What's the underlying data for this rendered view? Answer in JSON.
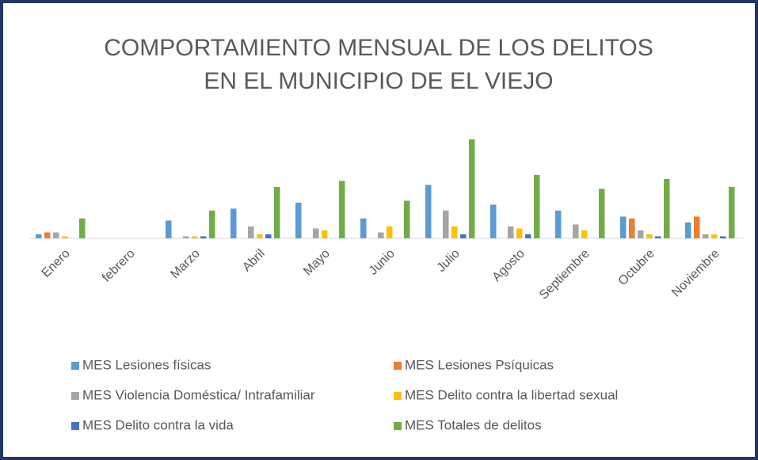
{
  "chart_data": {
    "type": "bar",
    "title": [
      "COMPORTAMIENTO MENSUAL DE LOS DELITOS",
      "EN EL MUNICIPIO DE EL VIEJO"
    ],
    "categories": [
      "Enero",
      "febrero",
      "Marzo",
      "Abril",
      "Mayo",
      "Junio",
      "Julio",
      "Agosto",
      "Septiembre",
      "Octubre",
      "Noviembre"
    ],
    "series": [
      {
        "name": "MES Lesiones físicas",
        "color": "#5b9bd5",
        "values": [
          2,
          0,
          9,
          15,
          18,
          10,
          27,
          17,
          14,
          11,
          8
        ]
      },
      {
        "name": "MES Lesiones Psíquicas",
        "color": "#ed7d31",
        "values": [
          3,
          0,
          0,
          0,
          0,
          0,
          0,
          0,
          0,
          10,
          11
        ]
      },
      {
        "name": "MES Violencia Doméstica/ Intrafamiliar",
        "color": "#a5a5a5",
        "values": [
          3,
          0,
          1,
          6,
          5,
          3,
          14,
          6,
          7,
          4,
          2
        ]
      },
      {
        "name": "MES Delito contra la libertad sexual",
        "color": "#ffc000",
        "values": [
          1,
          0,
          1,
          2,
          4,
          6,
          6,
          5,
          4,
          2,
          2
        ]
      },
      {
        "name": "MES Delito contra la vida",
        "color": "#4472c4",
        "values": [
          0,
          0,
          1,
          2,
          0,
          0,
          2,
          2,
          0,
          1,
          1
        ]
      },
      {
        "name": "MES Totales de  delitos",
        "color": "#70ad47",
        "values": [
          10,
          0,
          14,
          26,
          29,
          19,
          50,
          32,
          25,
          30,
          26
        ]
      }
    ]
  }
}
